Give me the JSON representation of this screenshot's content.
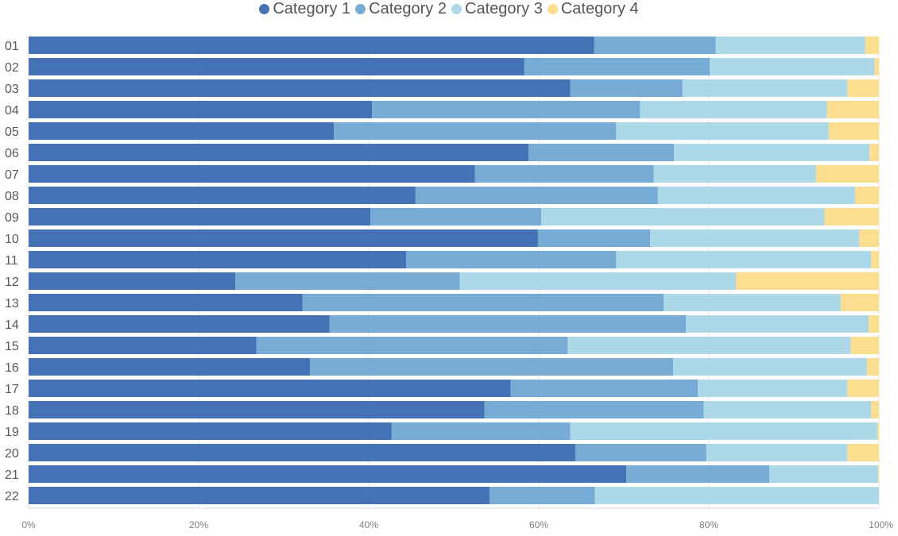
{
  "chart_data": {
    "type": "bar",
    "orientation": "horizontal",
    "stacked": "percent",
    "categories": [
      "01",
      "02",
      "03",
      "04",
      "05",
      "06",
      "07",
      "08",
      "09",
      "10",
      "11",
      "12",
      "13",
      "14",
      "15",
      "16",
      "17",
      "18",
      "19",
      "20",
      "21",
      "22"
    ],
    "series": [
      {
        "name": "Category 1",
        "color": "#4472b4",
        "values": [
          66.5,
          58.3,
          63.7,
          40.4,
          35.9,
          58.8,
          52.5,
          45.5,
          40.2,
          59.9,
          44.4,
          24.3,
          32.2,
          35.4,
          26.8,
          33.1,
          56.7,
          53.6,
          42.7,
          64.3,
          70.3,
          54.2
        ]
      },
      {
        "name": "Category 2",
        "color": "#75abd4",
        "values": [
          14.3,
          21.8,
          13.2,
          31.5,
          33.2,
          17.1,
          21.0,
          28.5,
          20.1,
          13.2,
          24.7,
          26.4,
          42.5,
          41.9,
          36.6,
          42.7,
          22.0,
          25.8,
          21.0,
          15.4,
          16.8,
          12.4
        ]
      },
      {
        "name": "Category 3",
        "color": "#add8e8",
        "values": [
          17.6,
          19.4,
          19.4,
          22.0,
          25.0,
          23.0,
          19.1,
          23.2,
          33.3,
          24.6,
          30.0,
          32.5,
          20.8,
          21.5,
          33.3,
          22.8,
          17.6,
          19.7,
          36.1,
          16.6,
          12.8,
          33.4
        ]
      },
      {
        "name": "Category 4",
        "color": "#fddd8f",
        "values": [
          1.6,
          0.5,
          3.7,
          6.1,
          5.9,
          1.1,
          7.4,
          2.8,
          6.4,
          2.3,
          0.9,
          16.8,
          4.5,
          1.2,
          3.3,
          1.4,
          3.7,
          0.9,
          0.2,
          3.7,
          0.1,
          0.0
        ]
      }
    ],
    "xaxis": {
      "ticks": [
        "0%",
        "20%",
        "40%",
        "60%",
        "80%",
        "100%"
      ],
      "range": [
        0,
        100
      ]
    },
    "legend_position": "top-center",
    "grid": "vertical"
  }
}
